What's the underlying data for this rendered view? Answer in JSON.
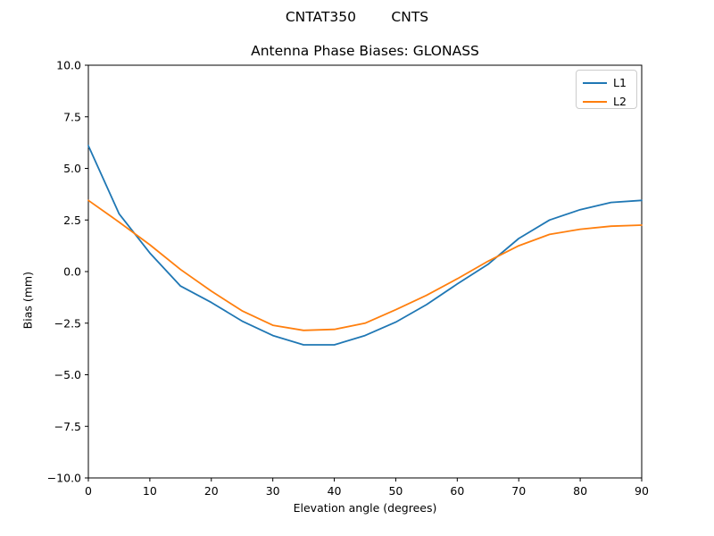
{
  "suptitle": "CNTAT350        CNTS",
  "chart_data": {
    "type": "line",
    "title": "Antenna Phase Biases: GLONASS",
    "xlabel": "Elevation angle (degrees)",
    "ylabel": "Bias (mm)",
    "xlim": [
      0,
      90
    ],
    "ylim": [
      -10,
      10
    ],
    "xticks": [
      0,
      10,
      20,
      30,
      40,
      50,
      60,
      70,
      80,
      90
    ],
    "yticks": [
      -10.0,
      -7.5,
      -5.0,
      -2.5,
      0.0,
      2.5,
      5.0,
      7.5,
      10.0
    ],
    "grid": false,
    "legend_position": "upper right",
    "x": [
      0,
      5,
      10,
      15,
      20,
      25,
      30,
      35,
      40,
      45,
      50,
      55,
      60,
      65,
      70,
      75,
      80,
      85,
      90
    ],
    "series": [
      {
        "name": "L1",
        "color": "#1f77b4",
        "values": [
          6.1,
          2.8,
          0.9,
          -0.7,
          -1.5,
          -2.4,
          -3.1,
          -3.55,
          -3.55,
          -3.1,
          -2.45,
          -1.6,
          -0.6,
          0.35,
          1.6,
          2.5,
          3.0,
          3.35,
          3.45
        ]
      },
      {
        "name": "L2",
        "color": "#ff7f0e",
        "values": [
          3.45,
          2.4,
          1.3,
          0.1,
          -0.95,
          -1.9,
          -2.6,
          -2.85,
          -2.8,
          -2.5,
          -1.85,
          -1.15,
          -0.35,
          0.5,
          1.25,
          1.8,
          2.05,
          2.2,
          2.25
        ]
      }
    ]
  }
}
